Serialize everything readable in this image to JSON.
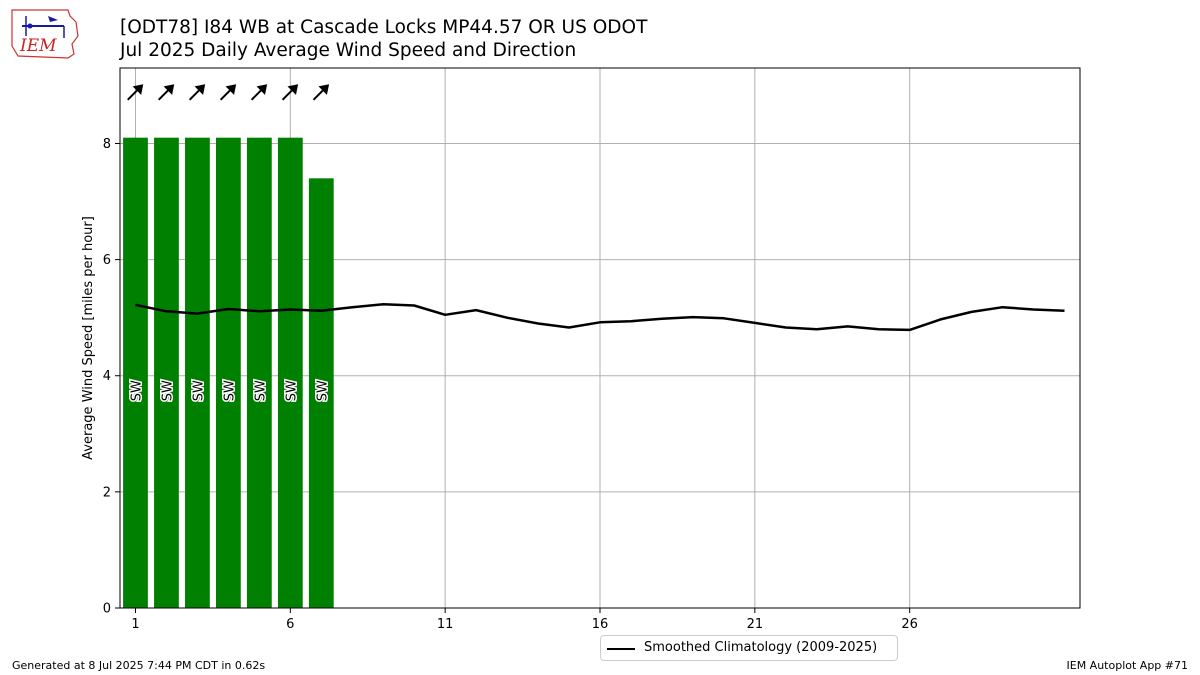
{
  "header": {
    "title_line1": "[ODT78] I84 WB at Cascade Locks MP44.57  OR US ODOT",
    "title_line2": "Jul 2025 Daily Average Wind Speed and Direction"
  },
  "logo": {
    "text": "IEM"
  },
  "chart_data": {
    "type": "bar",
    "title": "[ODT78] I84 WB at Cascade Locks MP44.57  OR US ODOT — Jul 2025 Daily Average Wind Speed and Direction",
    "ylabel": "Average Wind Speed [miles per hour]",
    "xlabel": "",
    "xlim": [
      0.5,
      31.5
    ],
    "ylim": [
      0,
      9.3
    ],
    "x_ticks": [
      1,
      6,
      11,
      16,
      21,
      26
    ],
    "y_ticks": [
      0,
      2,
      4,
      6,
      8
    ],
    "grid": true,
    "legend_position": "below the chart, centered",
    "bar_color": "#008000",
    "series": [
      {
        "type": "bar",
        "days": [
          1,
          2,
          3,
          4,
          5,
          6,
          7
        ],
        "values": [
          8.1,
          8.1,
          8.1,
          8.1,
          8.1,
          8.1,
          7.4
        ],
        "direction_labels": [
          "SW",
          "SW",
          "SW",
          "SW",
          "SW",
          "SW",
          "SW"
        ],
        "direction_degrees": [
          225,
          225,
          225,
          225,
          225,
          225,
          225
        ]
      },
      {
        "type": "line",
        "name": "Smoothed Climatology (2009-2025)",
        "color": "#000000",
        "days": [
          1,
          2,
          3,
          4,
          5,
          6,
          7,
          8,
          9,
          10,
          11,
          12,
          13,
          14,
          15,
          16,
          17,
          18,
          19,
          20,
          21,
          22,
          23,
          24,
          25,
          26,
          27,
          28,
          29,
          30,
          31
        ],
        "values": [
          5.22,
          5.11,
          5.07,
          5.15,
          5.11,
          5.14,
          5.12,
          5.18,
          5.23,
          5.21,
          5.05,
          5.13,
          5.0,
          4.9,
          4.83,
          4.92,
          4.94,
          4.98,
          5.01,
          4.99,
          4.91,
          4.83,
          4.8,
          4.85,
          4.8,
          4.79,
          4.97,
          5.1,
          5.18,
          5.14,
          5.12
        ]
      }
    ]
  },
  "legend": {
    "label": "Smoothed Climatology (2009-2025)"
  },
  "footer": {
    "left": "Generated at 8 Jul 2025 7:44 PM CDT in 0.62s",
    "right": "IEM Autoplot App #71"
  }
}
